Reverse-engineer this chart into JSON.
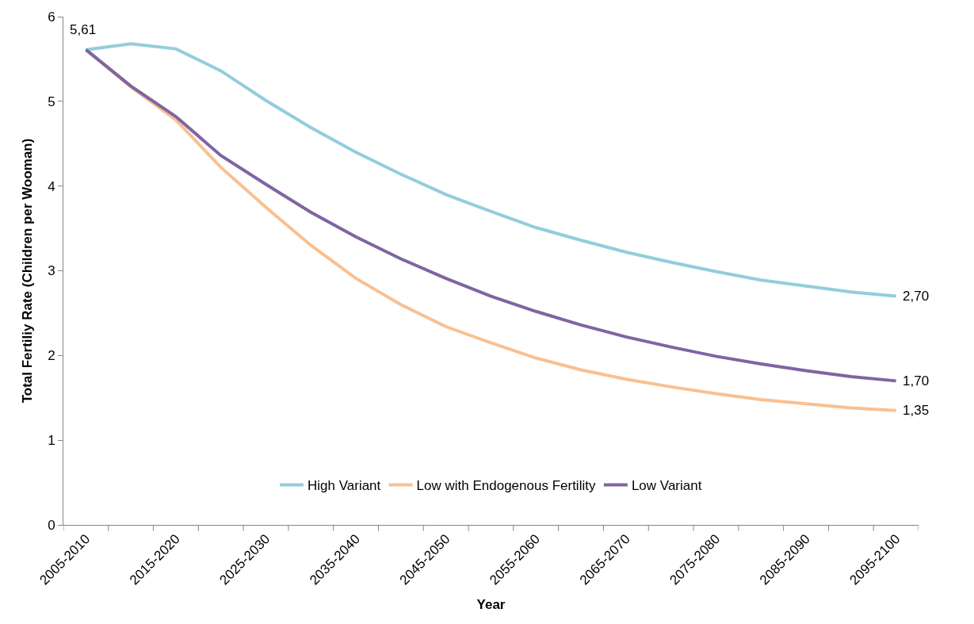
{
  "chart_data": {
    "type": "line",
    "xlabel": "Year",
    "ylabel": "Total Fertiliy Rate (Children per Wooman)",
    "categories": [
      "2005-2010",
      null,
      "2015-2020",
      null,
      "2025-2030",
      null,
      "2035-2040",
      null,
      "2045-2050",
      null,
      "2055-2060",
      null,
      "2065-2070",
      null,
      "2075-2080",
      null,
      "2085-2090",
      null,
      "2095-2100"
    ],
    "series": [
      {
        "name": "High Variant",
        "color": "#93cddd",
        "values": [
          5.61,
          5.68,
          5.62,
          5.36,
          5.01,
          4.69,
          4.4,
          4.14,
          3.9,
          3.7,
          3.51,
          3.36,
          3.22,
          3.1,
          2.99,
          2.89,
          2.82,
          2.75,
          2.7
        ],
        "value_labels": [
          "5,61",
          null,
          null,
          null,
          null,
          null,
          null,
          null,
          null,
          null,
          null,
          null,
          null,
          null,
          null,
          null,
          null,
          null,
          "2,70"
        ]
      },
      {
        "name": "Low with Endogenous Fertility",
        "color": "#fac090",
        "values": [
          5.61,
          5.17,
          4.78,
          4.22,
          3.75,
          3.3,
          2.91,
          2.6,
          2.34,
          2.15,
          1.97,
          1.83,
          1.72,
          1.63,
          1.55,
          1.48,
          1.43,
          1.38,
          1.35
        ],
        "value_labels": [
          null,
          null,
          null,
          null,
          null,
          null,
          null,
          null,
          null,
          null,
          null,
          null,
          null,
          null,
          null,
          null,
          null,
          null,
          "1,35"
        ]
      },
      {
        "name": "Low Variant",
        "color": "#8064a2",
        "values": [
          5.61,
          5.18,
          4.82,
          4.36,
          4.02,
          3.69,
          3.4,
          3.14,
          2.91,
          2.7,
          2.52,
          2.36,
          2.22,
          2.1,
          1.99,
          1.9,
          1.82,
          1.75,
          1.7
        ],
        "value_labels": [
          null,
          null,
          null,
          null,
          null,
          null,
          null,
          null,
          null,
          null,
          null,
          null,
          null,
          null,
          null,
          null,
          null,
          null,
          "1,70"
        ]
      }
    ],
    "ylim": [
      0,
      6
    ],
    "yticks": [
      0,
      1,
      2,
      3,
      4,
      5,
      6
    ],
    "legend": "bottom",
    "marker": "none",
    "line_style": "solid"
  }
}
